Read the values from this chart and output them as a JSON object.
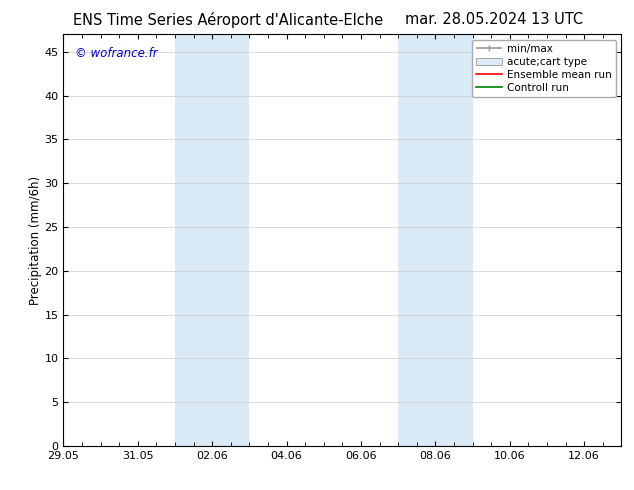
{
  "title_left": "ENS Time Series Aéroport d'Alicante-Elche",
  "title_right": "mar. 28.05.2024 13 UTC",
  "ylabel": "Precipitation (mm/6h)",
  "watermark": "© wofrance.fr",
  "watermark_color": "#0000cc",
  "background_color": "#ffffff",
  "plot_bg_color": "#ffffff",
  "ylim": [
    0,
    47
  ],
  "yticks": [
    0,
    5,
    10,
    15,
    20,
    25,
    30,
    35,
    40,
    45
  ],
  "xstart_days": 0,
  "xend_days": 15,
  "xtick_labels": [
    "29.05",
    "31.05",
    "02.06",
    "04.06",
    "06.06",
    "08.06",
    "10.06",
    "12.06"
  ],
  "xtick_positions_days": [
    0,
    2,
    4,
    6,
    8,
    10,
    12,
    14
  ],
  "shaded_regions": [
    {
      "xstart_days": 3.0,
      "xend_days": 5.0,
      "color": "#daeaf7"
    },
    {
      "xstart_days": 9.0,
      "xend_days": 11.0,
      "color": "#daeaf7"
    }
  ],
  "legend_items": [
    {
      "label": "min/max",
      "color": "#999999",
      "lw": 1.2,
      "style": "line_with_caps"
    },
    {
      "label": "acute;cart type",
      "color": "#daeaf7",
      "style": "bar"
    },
    {
      "label": "Ensemble mean run",
      "color": "#ff0000",
      "lw": 1.2,
      "style": "line"
    },
    {
      "label": "Controll run",
      "color": "#008000",
      "lw": 1.2,
      "style": "line"
    }
  ],
  "title_fontsize": 10.5,
  "tick_fontsize": 8,
  "legend_fontsize": 7.5,
  "ylabel_fontsize": 8.5
}
